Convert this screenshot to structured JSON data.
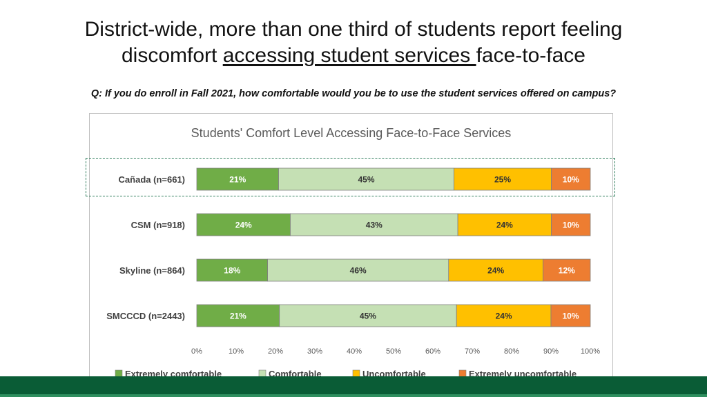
{
  "slide": {
    "title_line1": "District-wide, more than one third of students report feeling",
    "title_line2_pre": "discomfort ",
    "title_line2_underlined": "accessing student services ",
    "title_line2_post": "face-to-face",
    "question": "Q: If you do enroll in Fall 2021, how comfortable would you be to use the student services offered on campus?"
  },
  "colors": {
    "Extremely comfortable": "#70ad47",
    "Comfortable": "#c5e0b4",
    "Uncomfortable": "#ffc000",
    "Extremely uncomfortable": "#ed7d31",
    "highlight_border": "#2e7d5b",
    "band": "#0a5c36"
  },
  "chart_data": {
    "type": "bar",
    "orientation": "horizontal",
    "stacked": "percent",
    "title": "Students' Comfort Level Accessing Face-to-Face Services",
    "categories": [
      "Cañada (n=661)",
      "CSM (n=918)",
      "Skyline (n=864)",
      "SMCCCD (n=2443)"
    ],
    "series": [
      {
        "name": "Extremely comfortable",
        "values": [
          21,
          24,
          18,
          21
        ],
        "labels": [
          "21%",
          "24%",
          "18%",
          "21%"
        ]
      },
      {
        "name": "Comfortable",
        "values": [
          45,
          43,
          46,
          45
        ],
        "labels": [
          "45%",
          "43%",
          "46%",
          "45%"
        ]
      },
      {
        "name": "Uncomfortable",
        "values": [
          25,
          24,
          24,
          24
        ],
        "labels": [
          "25%",
          "24%",
          "24%",
          "24%"
        ]
      },
      {
        "name": "Extremely uncomfortable",
        "values": [
          10,
          10,
          12,
          10
        ],
        "labels": [
          "10%",
          "10%",
          "12%",
          "10%"
        ]
      }
    ],
    "xlim": [
      0,
      100
    ],
    "x_ticks": [
      "0%",
      "10%",
      "20%",
      "30%",
      "40%",
      "50%",
      "60%",
      "70%",
      "80%",
      "90%",
      "100%"
    ],
    "legend_position": "bottom",
    "grid": false,
    "highlighted_category": "Cañada (n=661)"
  }
}
